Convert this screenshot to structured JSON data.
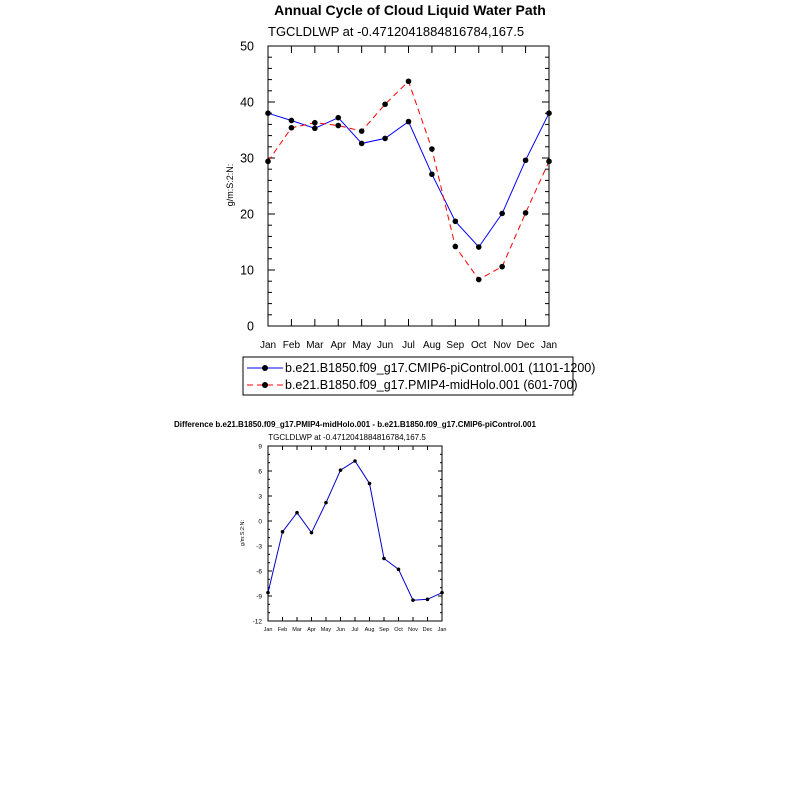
{
  "colors": {
    "control": "#0000ff",
    "midholo": "#ff0000",
    "diff": "#0000cc",
    "axis": "#000000",
    "marker": "#000000"
  },
  "chart_data": [
    {
      "type": "line",
      "title": "Annual Cycle of Cloud Liquid Water Path",
      "subtitle": "TGCLDLWP at -0.4712041884816784,167.5",
      "xlabel": "",
      "ylabel": "g/m:S:2:N:",
      "ylim": [
        0,
        50
      ],
      "yticks": [
        "0",
        "10",
        "20",
        "30",
        "40",
        "50"
      ],
      "categories": [
        "Jan",
        "Feb",
        "Mar",
        "Apr",
        "May",
        "Jun",
        "Jul",
        "Aug",
        "Sep",
        "Oct",
        "Nov",
        "Dec",
        "Jan"
      ],
      "series": [
        {
          "name": "b.e21.B1850.f09_g17.CMIP6-piControl.001 (1101-1200)",
          "values": [
            38.0,
            36.7,
            35.3,
            37.2,
            32.6,
            33.5,
            36.5,
            27.1,
            18.7,
            14.1,
            20.1,
            29.6,
            38.0
          ]
        },
        {
          "name": "b.e21.B1850.f09_g17.PMIP4-midHolo.001 (601-700)",
          "values": [
            29.4,
            35.4,
            36.3,
            35.8,
            34.8,
            39.6,
            43.7,
            31.6,
            14.2,
            8.3,
            10.6,
            20.2,
            29.4
          ]
        }
      ],
      "legend": "below"
    },
    {
      "type": "line",
      "title": "Difference b.e21.B1850.f09_g17.PMIP4-midHolo.001 - b.e21.B1850.f09_g17.CMIP6-piControl.001",
      "subtitle": "TGCLDLWP at -0.4712041884816784,167.5",
      "xlabel": "",
      "ylabel": "g/m:S:2:N:",
      "ylim": [
        -12,
        9
      ],
      "yticks": [
        "-12",
        "-9",
        "-6",
        "-3",
        "0",
        "3",
        "6",
        "9"
      ],
      "categories": [
        "Jan",
        "Feb",
        "Mar",
        "Apr",
        "May",
        "Jun",
        "Jul",
        "Aug",
        "Sep",
        "Oct",
        "Nov",
        "Dec",
        "Jan"
      ],
      "series": [
        {
          "name": "Difference",
          "values": [
            -8.6,
            -1.3,
            1.0,
            -1.4,
            2.2,
            6.1,
            7.2,
            4.5,
            -4.5,
            -5.8,
            -9.5,
            -9.4,
            -8.6
          ]
        }
      ]
    }
  ]
}
